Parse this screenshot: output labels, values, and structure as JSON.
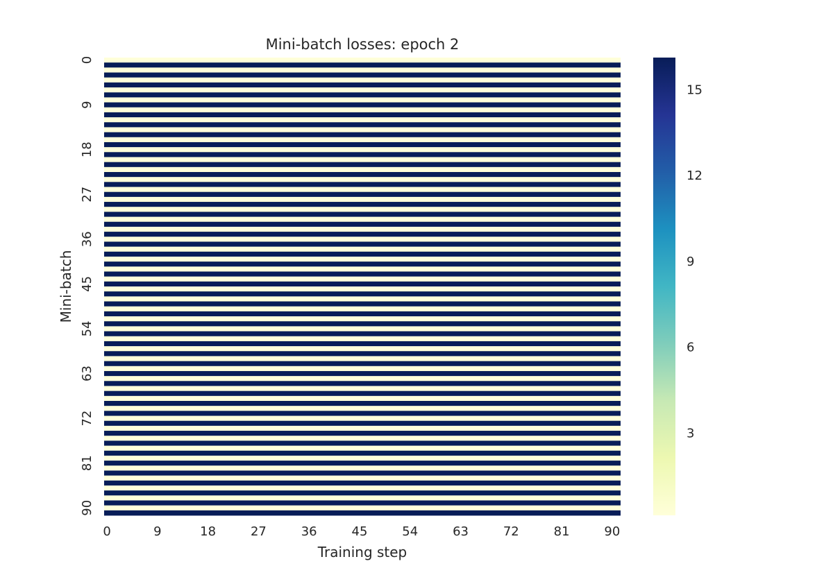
{
  "chart_data": {
    "type": "heatmap",
    "title": "Mini-batch losses: epoch 2",
    "xlabel": "Training step",
    "ylabel": "Mini-batch",
    "n_rows": 92,
    "n_cols": 92,
    "x_ticks": [
      0,
      9,
      18,
      27,
      36,
      45,
      54,
      63,
      72,
      81,
      90
    ],
    "y_ticks": [
      0,
      9,
      18,
      27,
      36,
      45,
      54,
      63,
      72,
      81,
      90
    ],
    "row_pattern": {
      "description_values_by_row_parity": true,
      "even_row_value": 0.1,
      "odd_row_value": 16.1
    },
    "colorbar": {
      "min": 0.1,
      "max": 16.1,
      "ticks": [
        3,
        6,
        9,
        12,
        15
      ],
      "colormap": "YlGnBu",
      "colors": [
        "#ffffd9",
        "#edf8b1",
        "#c7e9b4",
        "#7fcdbb",
        "#41b6c4",
        "#1d91c0",
        "#225ea8",
        "#253494",
        "#081d58"
      ]
    },
    "grid": false
  }
}
